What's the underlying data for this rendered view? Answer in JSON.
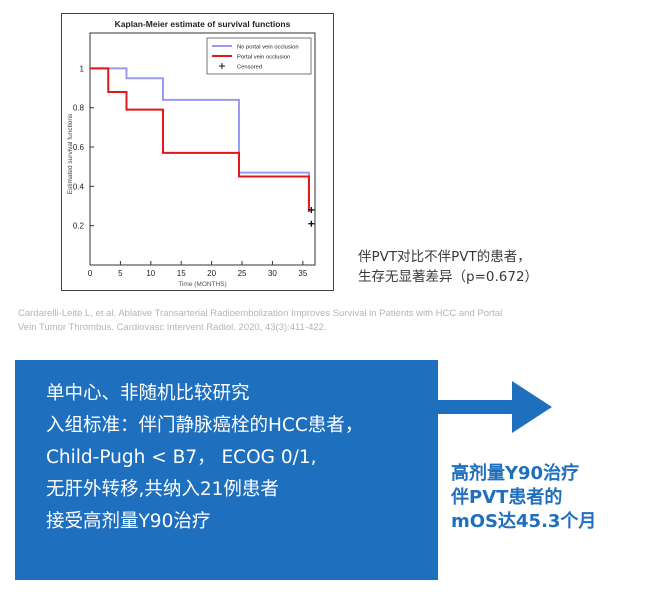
{
  "chart_data": {
    "type": "line",
    "title": "Kaplan-Meier estimate of survival functions",
    "xlabel": "Time (MONTHS)",
    "ylabel": "Estimated survival functions",
    "xlim": [
      0,
      37
    ],
    "ylim": [
      0,
      1.18
    ],
    "x_ticks": [
      0,
      5,
      10,
      15,
      20,
      25,
      30,
      35
    ],
    "y_ticks": [
      0.2,
      0.4,
      0.6,
      0.8,
      1
    ],
    "y_tick_labels": [
      "0.2",
      "0.4",
      "0.6",
      "0.8",
      "1"
    ],
    "x_tick_labels": [
      "0",
      "5",
      "10",
      "15",
      "20",
      "25",
      "30",
      "35"
    ],
    "legend_position": "top-right",
    "censored_label": "Censored",
    "series": [
      {
        "name": "No portal vein occlusion",
        "color": "#9a9af0",
        "step": true,
        "x": [
          0,
          3,
          6,
          12,
          24.5,
          36
        ],
        "y": [
          1.0,
          1.0,
          0.95,
          0.84,
          0.47,
          0.31
        ]
      },
      {
        "name": "Portal vein occlusion",
        "color": "#e01818",
        "step": true,
        "x": [
          0,
          3,
          6,
          12,
          24.5,
          36
        ],
        "y": [
          1.0,
          0.88,
          0.79,
          0.57,
          0.45,
          0.27
        ]
      }
    ],
    "censored": [
      {
        "x": 36.4,
        "y": 0.28
      },
      {
        "x": 36.4,
        "y": 0.21
      }
    ]
  },
  "note": {
    "line1": "伴PVT对比不伴PVT的患者，",
    "line2": "生存无显著差异（p=0.672）"
  },
  "citation": {
    "line1": "Cardarelli-Leite L, et al. Ablative Transarterial Radioembolization Improves Survival in Patients with HCC and Portal",
    "line2": "Vein Tumor Thrombus. Cardiovasc Intervent Radiol. 2020, 43(3):411-422."
  },
  "study_box": {
    "lines": [
      "单中心、非随机比较研究",
      "入组标准：伴门静脉癌栓的HCC患者，",
      "Child-Pugh < B7， ECOG 0/1,",
      "无肝外转移,共纳入21例患者",
      "接受高剂量Y90治疗"
    ]
  },
  "result": {
    "line1": "高剂量Y90治疗",
    "line2": "伴PVT患者的",
    "line3": "mOS达45.3个月"
  },
  "colors": {
    "accent": "#1f6fbf",
    "km_blue": "#9a9af0",
    "km_red": "#e01818"
  }
}
